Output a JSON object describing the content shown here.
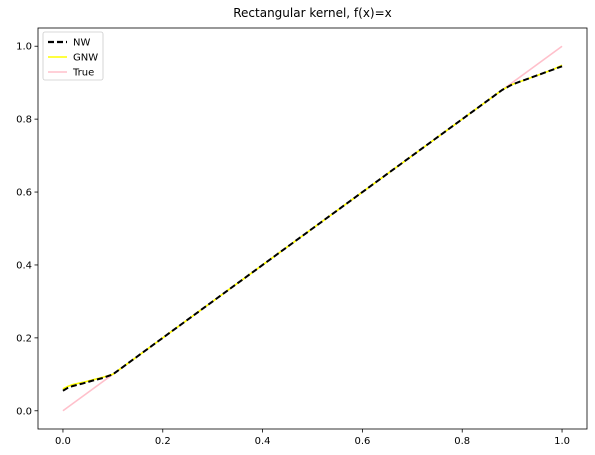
{
  "chart_data": {
    "type": "line",
    "title": "Rectangular kernel, f(x)=x",
    "xlabel": "",
    "ylabel": "",
    "xlim": [
      -0.05,
      1.05
    ],
    "ylim": [
      -0.05,
      1.05
    ],
    "xticks": [
      0.0,
      0.2,
      0.4,
      0.6,
      0.8,
      1.0
    ],
    "yticks": [
      0.0,
      0.2,
      0.4,
      0.6,
      0.8,
      1.0
    ],
    "xtick_labels": [
      "0.0",
      "0.2",
      "0.4",
      "0.6",
      "0.8",
      "1.0"
    ],
    "ytick_labels": [
      "0.0",
      "0.2",
      "0.4",
      "0.6",
      "0.8",
      "1.0"
    ],
    "grid": false,
    "legend_position": "top-left",
    "series": [
      {
        "name": "NW",
        "color": "#000000",
        "style": "dashed",
        "x": [
          0.0,
          0.01,
          0.02,
          0.04,
          0.06,
          0.08,
          0.1,
          0.12,
          0.14,
          0.2,
          0.3,
          0.4,
          0.5,
          0.6,
          0.7,
          0.8,
          0.86,
          0.88,
          0.9,
          0.92,
          0.94,
          0.96,
          0.98,
          1.0
        ],
        "y": [
          0.055,
          0.063,
          0.068,
          0.075,
          0.083,
          0.09,
          0.1,
          0.12,
          0.14,
          0.2,
          0.3,
          0.4,
          0.5,
          0.6,
          0.7,
          0.8,
          0.86,
          0.88,
          0.895,
          0.905,
          0.915,
          0.925,
          0.935,
          0.945
        ]
      },
      {
        "name": "GNW",
        "color": "#ffff00",
        "style": "solid",
        "x": [
          0.0,
          0.01,
          0.02,
          0.04,
          0.06,
          0.08,
          0.1,
          0.12,
          0.14,
          0.2,
          0.3,
          0.4,
          0.5,
          0.6,
          0.7,
          0.8,
          0.86,
          0.88,
          0.9,
          0.92,
          0.94,
          0.96,
          0.98,
          1.0
        ],
        "y": [
          0.06,
          0.067,
          0.072,
          0.078,
          0.085,
          0.092,
          0.1,
          0.12,
          0.14,
          0.2,
          0.3,
          0.4,
          0.5,
          0.6,
          0.7,
          0.8,
          0.86,
          0.88,
          0.895,
          0.905,
          0.915,
          0.925,
          0.935,
          0.948
        ]
      },
      {
        "name": "True",
        "color": "#ffc0cb",
        "style": "solid",
        "x": [
          0.0,
          1.0
        ],
        "y": [
          0.0,
          1.0
        ]
      }
    ]
  }
}
